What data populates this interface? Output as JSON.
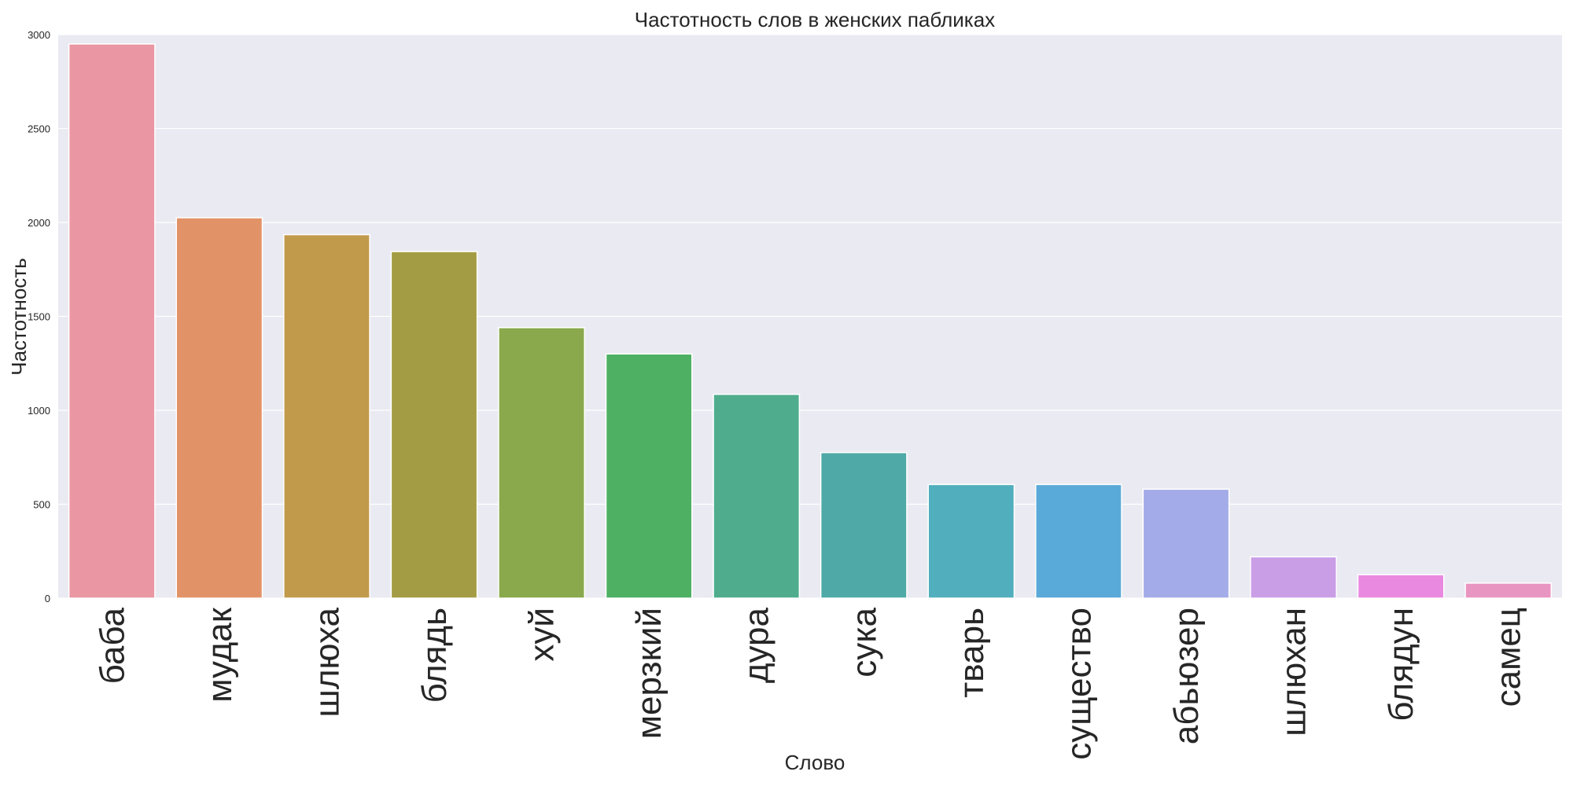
{
  "chart_data": {
    "type": "bar",
    "title": "Частотность слов в женских пабликах",
    "xlabel": "Слово",
    "ylabel": "Частотность",
    "categories": [
      "баба",
      "мудак",
      "шлюха",
      "блядь",
      "хуй",
      "мерзкий",
      "дура",
      "сука",
      "тварь",
      "существо",
      "абьюзер",
      "шлюхан",
      "блядун",
      "самец"
    ],
    "values": [
      2950,
      2025,
      1935,
      1845,
      1440,
      1300,
      1085,
      775,
      605,
      605,
      580,
      220,
      125,
      80
    ],
    "colors": [
      "#ea96a3",
      "#e19367",
      "#c29a4c",
      "#a49c44",
      "#89a94c",
      "#4eb063",
      "#4fad8d",
      "#4ea9a7",
      "#51aebd",
      "#59aad8",
      "#a3abe8",
      "#c99ee7",
      "#ea89e0",
      "#e995c1"
    ],
    "ylim": [
      0,
      3000
    ],
    "yticks": [
      0,
      500,
      1000,
      1500,
      2000,
      2500,
      3000
    ],
    "grid": true,
    "background": "#eaeaf2",
    "grid_color": "#ffffff"
  }
}
